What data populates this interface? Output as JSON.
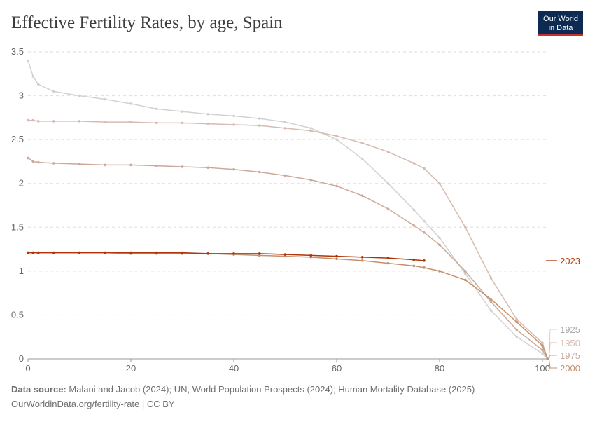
{
  "chart_data": {
    "type": "line",
    "title": "Effective Fertility Rates, by age, Spain",
    "logo": [
      "Our World",
      "in Data"
    ],
    "source_label": "Data source:",
    "source": "Malani and Jacob (2024); UN, World Population Prospects (2024); Human Mortality Database (2025)",
    "footer": "OurWorldinData.org/fertility-rate | CC BY",
    "x": [
      0,
      1,
      2,
      5,
      10,
      15,
      20,
      25,
      30,
      35,
      40,
      45,
      50,
      55,
      60,
      65,
      70,
      75,
      77,
      80,
      85,
      90,
      95,
      100,
      101
    ],
    "xlim": [
      0,
      101
    ],
    "xticks": [
      0,
      20,
      40,
      60,
      80,
      100
    ],
    "ylim": [
      0,
      3.5
    ],
    "yticks": [
      0,
      0.5,
      1,
      1.5,
      2,
      2.5,
      3,
      3.5
    ],
    "grid": true,
    "series": [
      {
        "name": "1925",
        "color": "#d2d2d2",
        "values": [
          3.4,
          3.22,
          3.13,
          3.05,
          3.0,
          2.96,
          2.91,
          2.85,
          2.82,
          2.79,
          2.77,
          2.74,
          2.7,
          2.63,
          2.5,
          2.28,
          2.0,
          1.7,
          1.57,
          1.38,
          0.97,
          0.55,
          0.25,
          0.06,
          0
        ]
      },
      {
        "name": "1950",
        "color": "#d6bbb0",
        "values": [
          2.72,
          2.72,
          2.71,
          2.71,
          2.71,
          2.7,
          2.7,
          2.69,
          2.69,
          2.68,
          2.67,
          2.66,
          2.63,
          2.6,
          2.54,
          2.46,
          2.36,
          2.23,
          2.17,
          2.0,
          1.5,
          0.92,
          0.45,
          0.18,
          0
        ]
      },
      {
        "name": "1975",
        "color": "#cba998",
        "values": [
          2.29,
          2.25,
          2.24,
          2.23,
          2.22,
          2.21,
          2.21,
          2.2,
          2.19,
          2.18,
          2.16,
          2.13,
          2.09,
          2.04,
          1.97,
          1.86,
          1.71,
          1.52,
          1.44,
          1.3,
          1.0,
          0.65,
          0.33,
          0.1,
          0
        ]
      },
      {
        "name": "2000",
        "color": "#c4906e",
        "values": [
          1.21,
          1.21,
          1.21,
          1.21,
          1.21,
          1.21,
          1.2,
          1.2,
          1.2,
          1.2,
          1.19,
          1.18,
          1.17,
          1.16,
          1.14,
          1.12,
          1.09,
          1.06,
          1.04,
          1.0,
          0.9,
          0.68,
          0.42,
          0.15,
          0
        ]
      },
      {
        "name": "2023",
        "color": "#b13507",
        "values": [
          1.21,
          1.21,
          1.21,
          1.21,
          1.21,
          1.21,
          1.21,
          1.21,
          1.21,
          1.2,
          1.2,
          1.2,
          1.19,
          1.18,
          1.17,
          1.16,
          1.15,
          1.13,
          1.12,
          null,
          null,
          null,
          null,
          null,
          null
        ]
      }
    ]
  }
}
